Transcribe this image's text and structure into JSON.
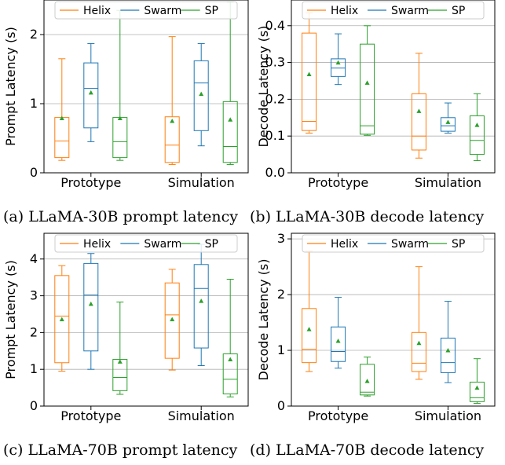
{
  "legend": [
    {
      "name": "Helix",
      "color": "#ff7f0e"
    },
    {
      "name": "Swarm",
      "color": "#1f77b4"
    },
    {
      "name": "SP",
      "color": "#2ca02c"
    }
  ],
  "chart_data": [
    {
      "type": "box",
      "caption": "(a) LLaMA-30B prompt latency",
      "ylabel": "Prompt Latency (s)",
      "ylim": [
        0,
        2.5
      ],
      "yticks": [
        "0",
        "1",
        "2"
      ],
      "yticks_values": [
        0,
        1,
        2
      ],
      "grid": "y",
      "legend_position": "top",
      "categories": [
        "Prototype",
        "Simulation"
      ],
      "series": [
        {
          "name": "Helix",
          "color": "#ff7f0e",
          "boxes": [
            {
              "whislo": 0.18,
              "q1": 0.22,
              "med": 0.46,
              "q3": 0.8,
              "whishi": 1.65,
              "mean": 0.79
            },
            {
              "whislo": 0.12,
              "q1": 0.15,
              "med": 0.4,
              "q3": 0.81,
              "whishi": 1.97,
              "mean": 0.75
            }
          ]
        },
        {
          "name": "Swarm",
          "color": "#1f77b4",
          "boxes": [
            {
              "whislo": 0.45,
              "q1": 0.65,
              "med": 1.22,
              "q3": 1.59,
              "whishi": 1.87,
              "mean": 1.16
            },
            {
              "whislo": 0.39,
              "q1": 0.61,
              "med": 1.3,
              "q3": 1.62,
              "whishi": 1.87,
              "mean": 1.14
            }
          ]
        },
        {
          "name": "SP",
          "color": "#2ca02c",
          "boxes": [
            {
              "whislo": 0.18,
              "q1": 0.22,
              "med": 0.45,
              "q3": 0.8,
              "whishi": 2.35,
              "mean": 0.79
            },
            {
              "whislo": 0.12,
              "q1": 0.15,
              "med": 0.38,
              "q3": 1.03,
              "whishi": 2.47,
              "mean": 0.77
            }
          ]
        }
      ]
    },
    {
      "type": "box",
      "caption": "(b) LLaMA-30B decode latency",
      "ylabel": "Decode Latency (s)",
      "ylim": [
        0,
        0.47
      ],
      "yticks": [
        "0.0",
        "0.1",
        "0.2",
        "0.3",
        "0.4"
      ],
      "yticks_values": [
        0,
        0.1,
        0.2,
        0.3,
        0.4
      ],
      "grid": "y",
      "legend_position": "top",
      "categories": [
        "Prototype",
        "Simulation"
      ],
      "series": [
        {
          "name": "Helix",
          "color": "#ff7f0e",
          "boxes": [
            {
              "whislo": 0.108,
              "q1": 0.115,
              "med": 0.14,
              "q3": 0.38,
              "whishi": 0.435,
              "mean": 0.268
            },
            {
              "whislo": 0.04,
              "q1": 0.062,
              "med": 0.1,
              "q3": 0.215,
              "whishi": 0.325,
              "mean": 0.168
            }
          ]
        },
        {
          "name": "Swarm",
          "color": "#1f77b4",
          "boxes": [
            {
              "whislo": 0.24,
              "q1": 0.262,
              "med": 0.285,
              "q3": 0.31,
              "whishi": 0.378,
              "mean": 0.3
            },
            {
              "whislo": 0.108,
              "q1": 0.113,
              "med": 0.128,
              "q3": 0.15,
              "whishi": 0.19,
              "mean": 0.138
            }
          ]
        },
        {
          "name": "SP",
          "color": "#2ca02c",
          "boxes": [
            {
              "whislo": 0.102,
              "q1": 0.105,
              "med": 0.128,
              "q3": 0.35,
              "whishi": 0.4,
              "mean": 0.245
            },
            {
              "whislo": 0.033,
              "q1": 0.05,
              "med": 0.088,
              "q3": 0.155,
              "whishi": 0.215,
              "mean": 0.13
            }
          ]
        }
      ]
    },
    {
      "type": "box",
      "caption": "(c) LLaMA-70B prompt latency",
      "ylabel": "Prompt Latency (s)",
      "ylim": [
        0,
        4.7
      ],
      "yticks": [
        "0",
        "1",
        "2",
        "3",
        "4"
      ],
      "yticks_values": [
        0,
        1,
        2,
        3,
        4
      ],
      "grid": "y",
      "legend_position": "top",
      "categories": [
        "Prototype",
        "Simulation"
      ],
      "series": [
        {
          "name": "Helix",
          "color": "#ff7f0e",
          "boxes": [
            {
              "whislo": 0.95,
              "q1": 1.18,
              "med": 2.45,
              "q3": 3.55,
              "whishi": 3.82,
              "mean": 2.36
            },
            {
              "whislo": 0.98,
              "q1": 1.3,
              "med": 2.48,
              "q3": 3.35,
              "whishi": 3.72,
              "mean": 2.36
            }
          ]
        },
        {
          "name": "Swarm",
          "color": "#1f77b4",
          "boxes": [
            {
              "whislo": 1.0,
              "q1": 1.5,
              "med": 3.02,
              "q3": 3.88,
              "whishi": 4.15,
              "mean": 2.78
            },
            {
              "whislo": 1.1,
              "q1": 1.58,
              "med": 3.2,
              "q3": 3.85,
              "whishi": 4.4,
              "mean": 2.86
            }
          ]
        },
        {
          "name": "SP",
          "color": "#2ca02c",
          "boxes": [
            {
              "whislo": 0.32,
              "q1": 0.42,
              "med": 0.78,
              "q3": 1.27,
              "whishi": 2.83,
              "mean": 1.21
            },
            {
              "whislo": 0.25,
              "q1": 0.33,
              "med": 0.73,
              "q3": 1.42,
              "whishi": 3.45,
              "mean": 1.27
            }
          ]
        }
      ]
    },
    {
      "type": "box",
      "caption": "(d) LLaMA-70B decode latency",
      "ylabel": "Decode Latency (s)",
      "ylim": [
        0,
        3.1
      ],
      "yticks": [
        "0",
        "1",
        "2",
        "3"
      ],
      "yticks_values": [
        0,
        1,
        2,
        3
      ],
      "grid": "y",
      "legend_position": "top",
      "categories": [
        "Prototype",
        "Simulation"
      ],
      "series": [
        {
          "name": "Helix",
          "color": "#ff7f0e",
          "boxes": [
            {
              "whislo": 0.62,
              "q1": 0.78,
              "med": 1.02,
              "q3": 1.75,
              "whishi": 2.78,
              "mean": 1.38
            },
            {
              "whislo": 0.48,
              "q1": 0.62,
              "med": 0.77,
              "q3": 1.32,
              "whishi": 2.5,
              "mean": 1.13
            }
          ]
        },
        {
          "name": "Swarm",
          "color": "#1f77b4",
          "boxes": [
            {
              "whislo": 0.68,
              "q1": 0.8,
              "med": 0.98,
              "q3": 1.42,
              "whishi": 1.95,
              "mean": 1.17
            },
            {
              "whislo": 0.42,
              "q1": 0.6,
              "med": 0.78,
              "q3": 1.22,
              "whishi": 1.88,
              "mean": 1.0
            }
          ]
        },
        {
          "name": "SP",
          "color": "#2ca02c",
          "boxes": [
            {
              "whislo": 0.18,
              "q1": 0.2,
              "med": 0.25,
              "q3": 0.75,
              "whishi": 0.88,
              "mean": 0.45
            },
            {
              "whislo": 0.05,
              "q1": 0.08,
              "med": 0.15,
              "q3": 0.43,
              "whishi": 0.85,
              "mean": 0.33
            }
          ]
        }
      ]
    }
  ]
}
